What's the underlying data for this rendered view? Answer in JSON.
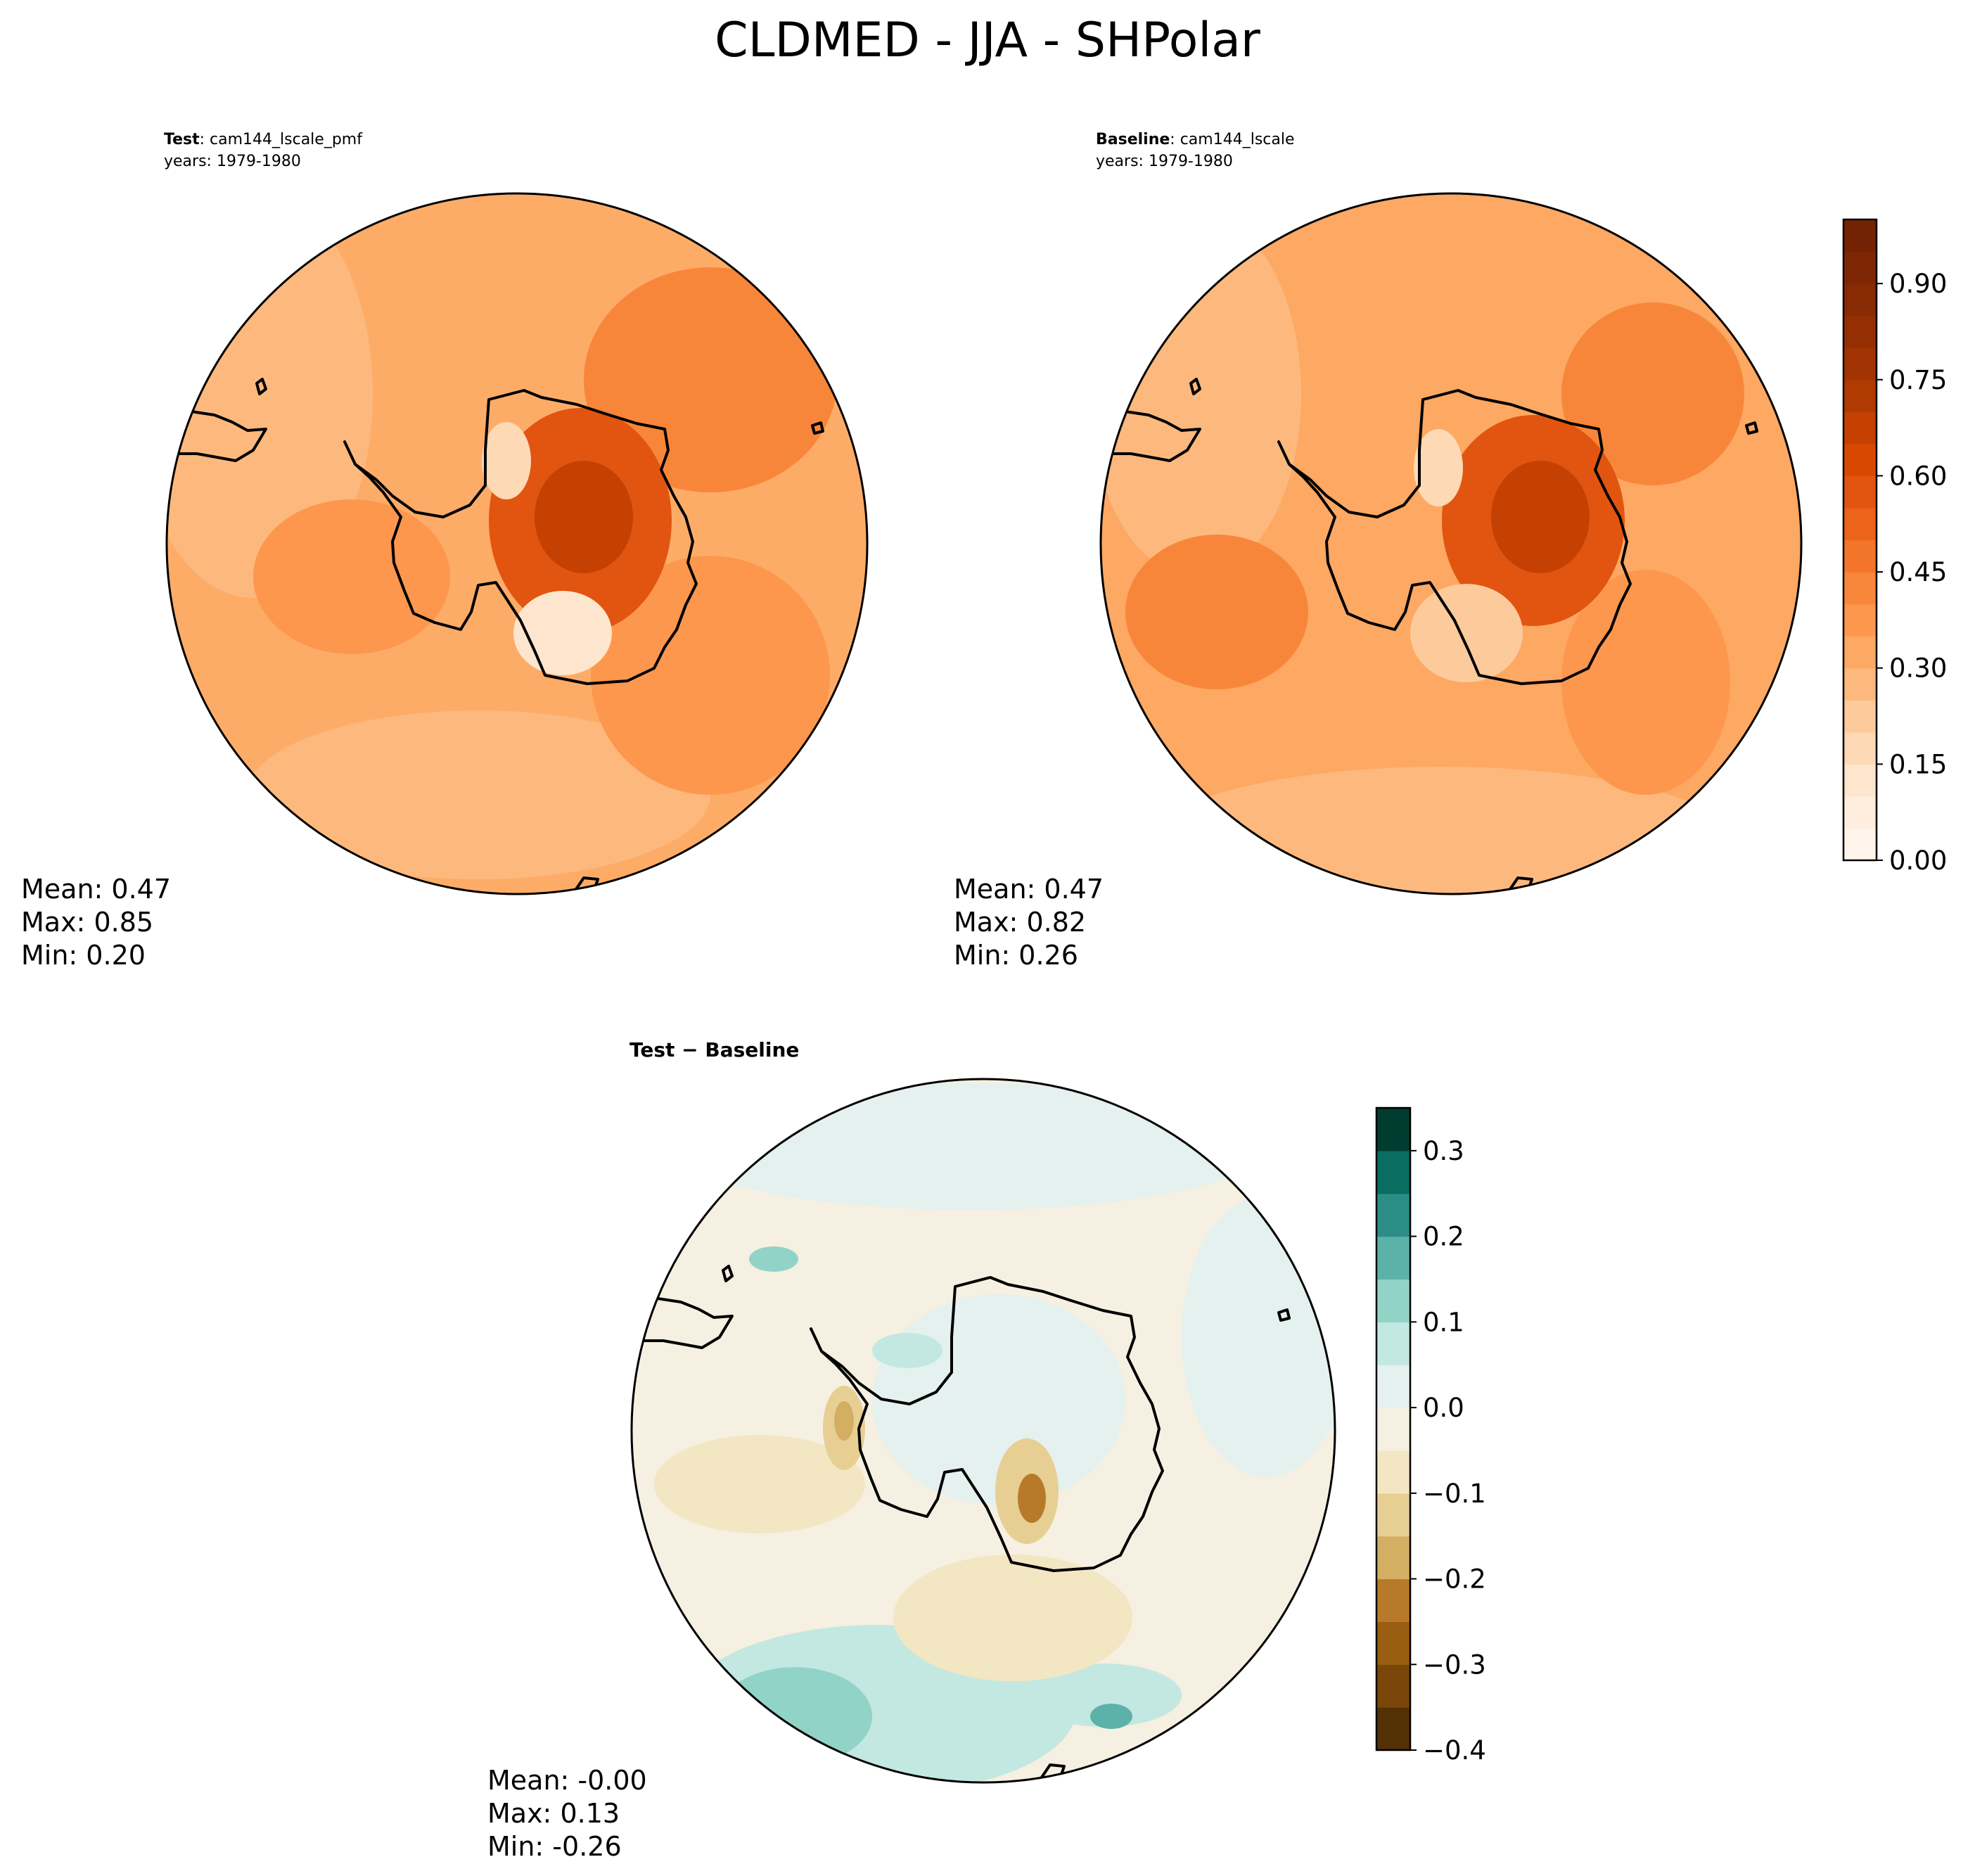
{
  "figure": {
    "title": "CLDMED - JJA - SHPolar"
  },
  "panels": [
    {
      "id": "test",
      "label_bold": "Test",
      "label_rest": ": cam144_lscale_pmf",
      "years": "years: 1979-1980",
      "stats": {
        "mean": "Mean:  0.47",
        "max": "Max:  0.85",
        "min": "Min:  0.20"
      }
    },
    {
      "id": "baseline",
      "label_bold": "Baseline",
      "label_rest": ": cam144_lscale",
      "years": "years: 1979-1980",
      "stats": {
        "mean": "Mean:  0.47",
        "max": "Max:  0.82",
        "min": "Min:  0.26"
      }
    },
    {
      "id": "diff",
      "label_bold": "Test − Baseline",
      "label_rest": "",
      "years": "",
      "stats": {
        "mean": "Mean: -0.00",
        "max": "Max:  0.13",
        "min": "Min: -0.26"
      }
    }
  ],
  "colorbars": {
    "main": {
      "colormap": "Oranges",
      "range": [
        0.0,
        1.0
      ],
      "levels": 20,
      "ticks": [
        "0.00",
        "0.15",
        "0.30",
        "0.45",
        "0.60",
        "0.75",
        "0.90"
      ],
      "tick_values": [
        0.0,
        0.15,
        0.3,
        0.45,
        0.6,
        0.75,
        0.9
      ],
      "colors": [
        "#fff5eb",
        "#ffeedd",
        "#fee6ce",
        "#fdd9b5",
        "#fdcb9b",
        "#fdb97d",
        "#fda863",
        "#fd974e",
        "#f8863a",
        "#f3752a",
        "#ec641a",
        "#e15510",
        "#d94801",
        "#c44103",
        "#b13a03",
        "#a23403",
        "#952f03",
        "#882a04",
        "#7f2704",
        "#732204"
      ]
    },
    "diff": {
      "colormap": "BrBG",
      "range": [
        -0.4,
        0.35
      ],
      "levels": 15,
      "ticks": [
        "−0.4",
        "−0.3",
        "−0.2",
        "−0.1",
        "0.0",
        "0.1",
        "0.2",
        "0.3"
      ],
      "tick_values": [
        -0.4,
        -0.3,
        -0.2,
        -0.1,
        0.0,
        0.1,
        0.2,
        0.3
      ],
      "colors": [
        "#543005",
        "#7a4609",
        "#995d12",
        "#b87a2a",
        "#d3ae63",
        "#e7cf94",
        "#f3e6c2",
        "#f5f0e1",
        "#e4f1ee",
        "#c2e8e1",
        "#92d3c8",
        "#5cb2a8",
        "#2b8d86",
        "#0a6d62",
        "#003c30"
      ]
    }
  },
  "chart_data": [
    {
      "type": "heatmap",
      "title": "Test: cam144_lscale_pmf",
      "subtitle": "years: 1979-1980",
      "projection": "south-polar-stereographic",
      "value_range": [
        0.0,
        1.0
      ],
      "stats": {
        "mean": 0.47,
        "max": 0.85,
        "min": 0.2
      }
    },
    {
      "type": "heatmap",
      "title": "Baseline: cam144_lscale",
      "subtitle": "years: 1979-1980",
      "projection": "south-polar-stereographic",
      "value_range": [
        0.0,
        1.0
      ],
      "stats": {
        "mean": 0.47,
        "max": 0.82,
        "min": 0.26
      }
    },
    {
      "type": "heatmap",
      "title": "Test − Baseline",
      "projection": "south-polar-stereographic",
      "value_range": [
        -0.4,
        0.35
      ],
      "stats": {
        "mean": -0.0,
        "max": 0.13,
        "min": -0.26
      }
    }
  ]
}
